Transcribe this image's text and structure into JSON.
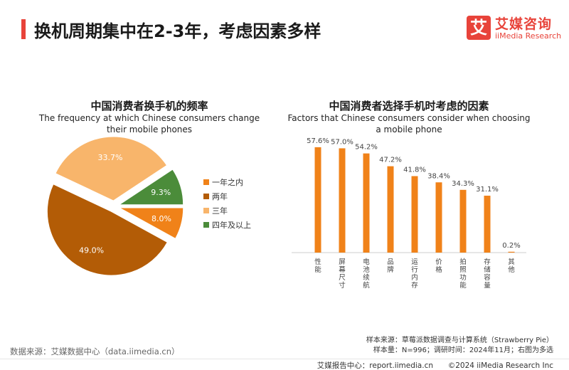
{
  "header": {
    "title": "换机周期集中在2-3年，考虑因素多样",
    "logo_mark": "艾",
    "logo_cn": "艾媒咨询",
    "logo_en": "iiMedia Research"
  },
  "chart_data": [
    {
      "type": "pie",
      "title": "中国消费者换手机的频率",
      "subtitle": "The frequency at which Chinese consumers change their mobile phones",
      "categories": [
        "一年之内",
        "两年",
        "三年",
        "四年及以上"
      ],
      "values": [
        8.0,
        49.0,
        33.7,
        9.3
      ],
      "labels": [
        "8.0%",
        "49.0%",
        "33.7%",
        "9.3%"
      ],
      "unit": "%",
      "colors": [
        "#f08219",
        "#b35c06",
        "#f8b56b",
        "#4b8c3a"
      ],
      "legend_position": "right"
    },
    {
      "type": "bar",
      "title": "中国消费者选择手机时考虑的因素",
      "subtitle": "Factors that Chinese consumers consider when choosing a mobile phone",
      "categories": [
        "性能",
        "屏幕尺寸",
        "电池续航",
        "品牌",
        "运行内存",
        "价格",
        "拍照功能",
        "存储容量",
        "其他"
      ],
      "values": [
        57.6,
        57.0,
        54.2,
        47.2,
        41.8,
        38.4,
        34.3,
        31.1,
        0.2
      ],
      "labels": [
        "57.6%",
        "57.0%",
        "54.2%",
        "47.2%",
        "41.8%",
        "38.4%",
        "34.3%",
        "31.1%",
        "0.2%"
      ],
      "unit": "%",
      "color": "#f08219",
      "ylim": [
        0,
        70
      ]
    }
  ],
  "footer": {
    "source": "数据来源：艾媒数据中心（data.iimedia.cn）",
    "sample_source": "样本来源：草莓派数据调查与计算系统（Strawberry Pie）",
    "sample_info": "样本量：N=996；调研时间：2024年11月；右图为多选",
    "report_center": "艾媒报告中心：report.iimedia.cn",
    "copyright": "©2024  iiMedia Research  Inc"
  }
}
